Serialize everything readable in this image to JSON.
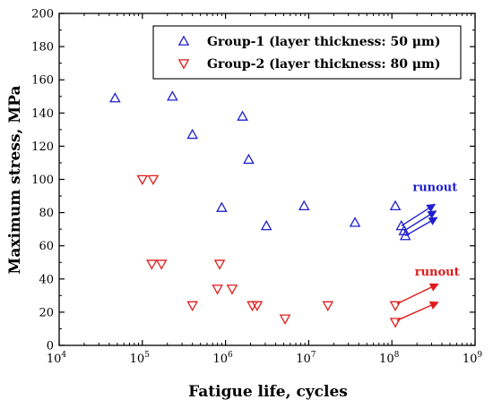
{
  "chart_data": {
    "type": "scatter",
    "title": "",
    "xlabel": "Fatigue life, cycles",
    "ylabel": "Maximum stress, MPa",
    "xscale": "log",
    "xlim": [
      10000,
      1000000000
    ],
    "ylim": [
      0,
      200
    ],
    "x_major_ticks": [
      {
        "value": 10000,
        "base": "10",
        "exp": "4"
      },
      {
        "value": 100000,
        "base": "10",
        "exp": "5"
      },
      {
        "value": 1000000,
        "base": "10",
        "exp": "6"
      },
      {
        "value": 10000000,
        "base": "10",
        "exp": "7"
      },
      {
        "value": 100000000,
        "base": "10",
        "exp": "8"
      },
      {
        "value": 1000000000,
        "base": "10",
        "exp": "9"
      }
    ],
    "y_ticks": [
      "0",
      "20",
      "40",
      "60",
      "80",
      "100",
      "120",
      "140",
      "160",
      "180",
      "200"
    ],
    "grid": false,
    "legend_position": "top-right",
    "series": [
      {
        "name": "Group-1 (layer thickness: 50 μm)",
        "marker": "triangle-up",
        "color": "#1f1fcc",
        "points": [
          {
            "x": 47000,
            "y": 149
          },
          {
            "x": 230000,
            "y": 150
          },
          {
            "x": 400000,
            "y": 127
          },
          {
            "x": 1600000,
            "y": 138
          },
          {
            "x": 1900000,
            "y": 112
          },
          {
            "x": 900000,
            "y": 83
          },
          {
            "x": 3100000,
            "y": 72
          },
          {
            "x": 8800000,
            "y": 84
          },
          {
            "x": 36000000,
            "y": 74
          },
          {
            "x": 110000000,
            "y": 84
          },
          {
            "x": 130000000,
            "y": 72
          },
          {
            "x": 140000000,
            "y": 69
          },
          {
            "x": 145000000,
            "y": 66
          }
        ]
      },
      {
        "name": "Group-2 (layer thickness: 80 μm)",
        "marker": "triangle-down",
        "color": "#e01b1b",
        "points": [
          {
            "x": 100000,
            "y": 100
          },
          {
            "x": 135000,
            "y": 100
          },
          {
            "x": 130000,
            "y": 49
          },
          {
            "x": 170000,
            "y": 49
          },
          {
            "x": 400000,
            "y": 24
          },
          {
            "x": 850000,
            "y": 49
          },
          {
            "x": 800000,
            "y": 34
          },
          {
            "x": 1200000,
            "y": 34
          },
          {
            "x": 2100000,
            "y": 24
          },
          {
            "x": 2400000,
            "y": 24
          },
          {
            "x": 5200000,
            "y": 16
          },
          {
            "x": 17000000,
            "y": 24
          },
          {
            "x": 110000000,
            "y": 24
          },
          {
            "x": 110000000,
            "y": 14
          }
        ]
      }
    ],
    "annotations": [
      {
        "text": "runout",
        "color": "#1f1fcc",
        "x": 330000000,
        "y": 93
      },
      {
        "text": "runout",
        "color": "#e01b1b",
        "x": 350000000,
        "y": 42
      }
    ],
    "runout_arrows": [
      {
        "color": "#1f1fcc",
        "from": [
          130000000,
          72
        ],
        "to": [
          330000000,
          85
        ]
      },
      {
        "color": "#1f1fcc",
        "from": [
          140000000,
          69
        ],
        "to": [
          340000000,
          81
        ]
      },
      {
        "color": "#1f1fcc",
        "from": [
          145000000,
          66
        ],
        "to": [
          350000000,
          77
        ]
      },
      {
        "color": "#e01b1b",
        "from": [
          115000000,
          25
        ],
        "to": [
          360000000,
          37
        ]
      },
      {
        "color": "#e01b1b",
        "from": [
          115000000,
          15
        ],
        "to": [
          360000000,
          26
        ]
      }
    ]
  }
}
